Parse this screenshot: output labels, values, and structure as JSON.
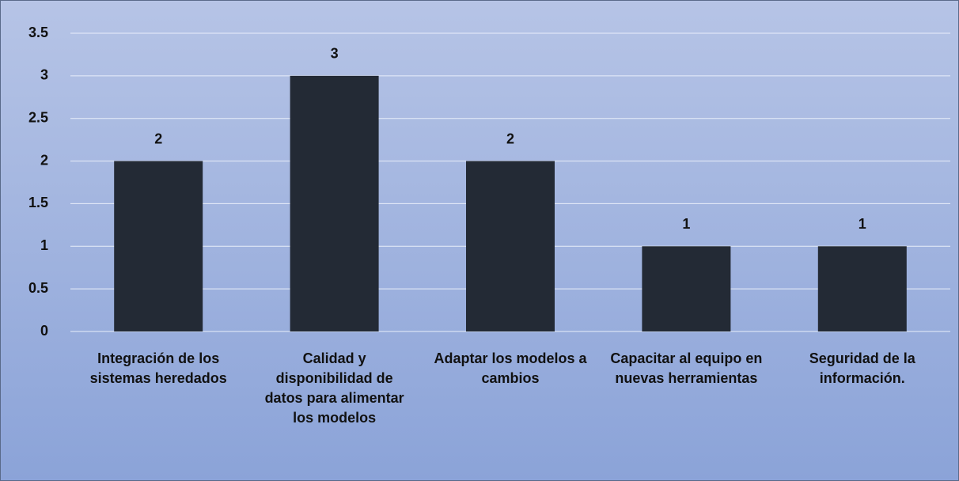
{
  "chart_data": {
    "type": "bar",
    "categories": [
      "Integración de los sistemas heredados",
      "Calidad y disponibilidad de datos para alimentar los modelos",
      "Adaptar los modelos a cambios",
      "Capacitar al equipo en nuevas herramientas",
      "Seguridad de la información."
    ],
    "values": [
      2,
      3,
      2,
      1,
      1
    ],
    "color": "#232a35",
    "ylim": [
      0,
      3.5
    ],
    "yticks": [
      0,
      0.5,
      1,
      1.5,
      2,
      2.5,
      3,
      3.5
    ],
    "grid": true
  }
}
